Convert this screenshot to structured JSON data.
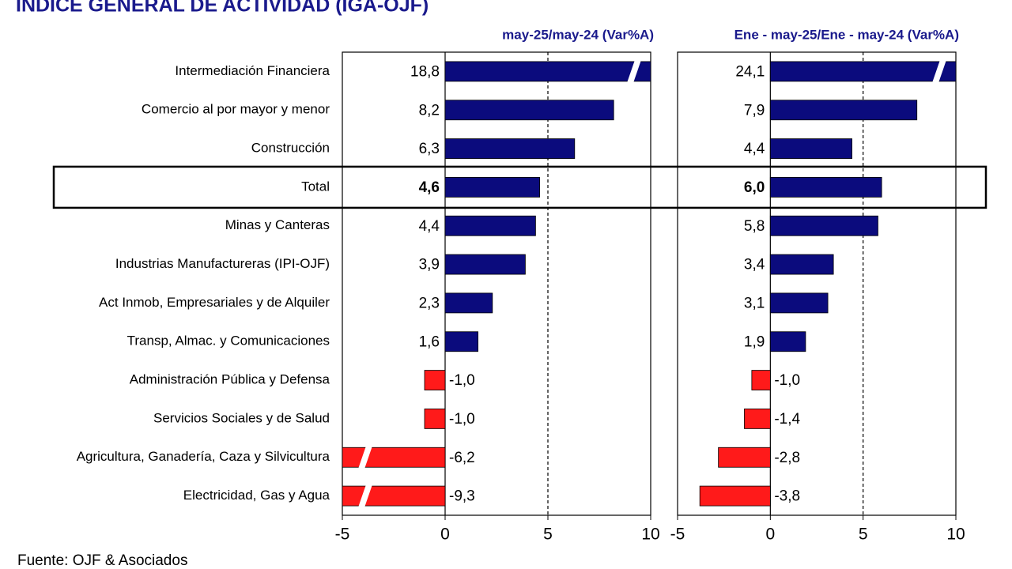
{
  "title": "INDICE GENERAL DE ACTIVIDAD (IGA-OJF)",
  "source": "Fuente: OJF & Asociados",
  "chart_data": [
    {
      "type": "bar",
      "orientation": "horizontal",
      "title": "may-25/may-24  (Var%A)",
      "categories": [
        "Intermediación Financiera",
        "Comercio al por mayor y menor",
        "Construcción",
        "Total",
        "Minas y Canteras",
        "Industrias Manufactureras (IPI-OJF)",
        "Act Inmob, Empresariales y de Alquiler",
        "Transp, Almac. y Comunicaciones",
        "Administración Pública y Defensa",
        "Servicios Sociales y de Salud",
        "Agricultura, Ganadería, Caza y Silvicultura",
        "Electricidad, Gas y Agua"
      ],
      "values": [
        18.8,
        8.2,
        6.3,
        4.6,
        4.4,
        3.9,
        2.3,
        1.6,
        -1.0,
        -1.0,
        -6.2,
        -9.3
      ],
      "value_labels": [
        "18,8",
        "8,2",
        "6,3",
        "4,6",
        "4,4",
        "3,9",
        "2,3",
        "1,6",
        "-1,0",
        "-1,0",
        "-6,2",
        "-9,3"
      ],
      "color": "#0b0b7d",
      "negative_color": "#ff1a1a",
      "highlight": 3,
      "xlim": [
        -5,
        10
      ],
      "xticks": [
        -5,
        0,
        5,
        10
      ],
      "reference_line": 5
    },
    {
      "type": "bar",
      "orientation": "horizontal",
      "title": "Ene - may-25/Ene - may-24  (Var%A)",
      "values": [
        24.1,
        7.9,
        4.4,
        6.0,
        5.8,
        3.4,
        3.1,
        1.9,
        -1.0,
        -1.4,
        -2.8,
        -3.8
      ],
      "value_labels": [
        "24,1",
        "7,9",
        "4,4",
        "6,0",
        "5,8",
        "3,4",
        "3,1",
        "1,9",
        "-1,0",
        "-1,4",
        "-2,8",
        "-3,8"
      ],
      "color": "#0b0b7d",
      "negative_color": "#ff1a1a",
      "highlight": 3,
      "xlim": [
        -5,
        10
      ],
      "xticks": [
        -5,
        0,
        5,
        10
      ],
      "reference_line": 5
    }
  ]
}
